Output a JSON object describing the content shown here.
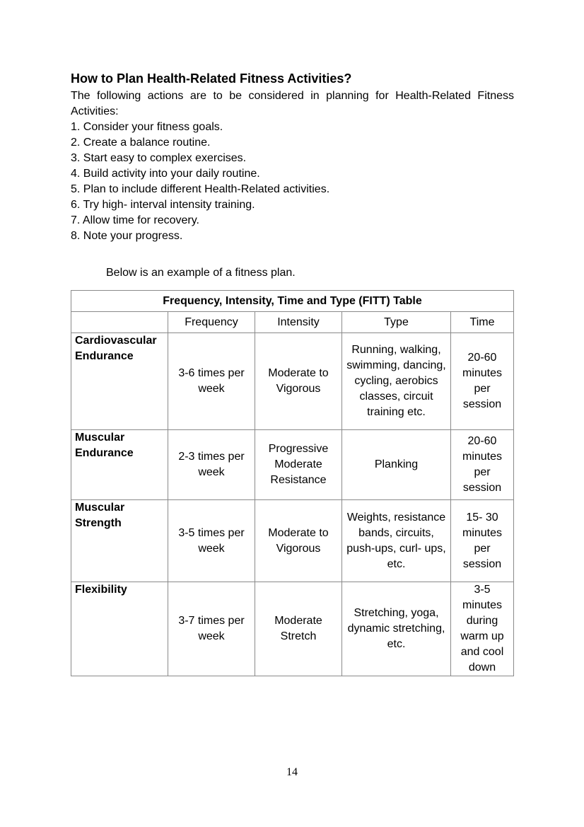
{
  "heading": "How to Plan Health-Related Fitness Activities?",
  "intro": "The following actions are to be considered in planning for Health-Related Fitness Activities:",
  "steps": [
    "1. Consider your fitness goals.",
    "2. Create a balance routine.",
    "3. Start easy to complex exercises.",
    "4. Build activity into your daily routine.",
    "5. Plan to include different Health-Related activities.",
    "6. Try high- interval intensity training.",
    "7. Allow time for recovery.",
    "8. Note your progress."
  ],
  "below_text": "Below is an example of a fitness plan.",
  "table": {
    "title": "Frequency, Intensity, Time and Type (FITT) Table",
    "headers": [
      "",
      "Frequency",
      "Intensity",
      "Type",
      "Time"
    ],
    "rows": [
      {
        "component": "Cardiovascular Endurance",
        "frequency": "3-6 times per week",
        "intensity": "Moderate to Vigorous",
        "type": "Running, walking, swimming, dancing, cycling, aerobics classes, circuit training etc.",
        "time": "20-60 minutes per session"
      },
      {
        "component": "Muscular Endurance",
        "frequency": "2-3 times per week",
        "intensity": "Progressive Moderate Resistance",
        "type": "Planking",
        "time": "20-60 minutes per session"
      },
      {
        "component": "Muscular Strength",
        "frequency": "3-5 times per week",
        "intensity": "Moderate to Vigorous",
        "type": "Weights, resistance bands, circuits, push-ups, curl- ups, etc.",
        "time": "15- 30 minutes per session"
      },
      {
        "component": "Flexibility",
        "frequency": "3-7 times per week",
        "intensity": "Moderate Stretch",
        "type": "Stretching, yoga, dynamic stretching, etc.",
        "time": "3-5 minutes during warm up and cool down"
      }
    ]
  },
  "page_number": "14"
}
